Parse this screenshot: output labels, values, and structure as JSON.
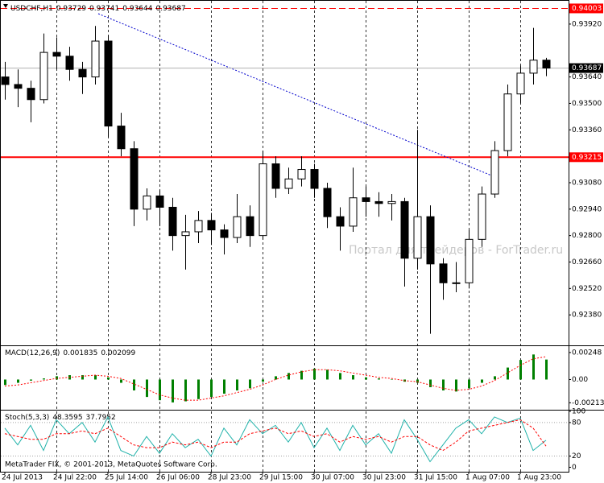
{
  "chart_data": [
    {
      "type": "candlestick",
      "symbol": "USDCHF,H1",
      "watermark": "Портал для трейдеров - ForTrader.ru",
      "copyright": "MetaTrader FIX, © 2001-2013, MetaQuotes Software Corp.",
      "categories": [
        "24 Jul 2013",
        null,
        null,
        null,
        "24 Jul 22:00",
        null,
        null,
        null,
        "25 Jul 14:00",
        null,
        null,
        null,
        "26 Jul 06:00",
        null,
        null,
        null,
        "28 Jul 23:00",
        null,
        null,
        null,
        "29 Jul 15:00",
        null,
        null,
        null,
        "30 Jul 07:00",
        null,
        null,
        null,
        "30 Jul 23:00",
        null,
        null,
        null,
        "31 Jul 15:00",
        null,
        null,
        null,
        "1 Aug 07:00",
        null,
        null,
        null,
        "1 Aug 23:00",
        null,
        null
      ],
      "open": [
        0.9364,
        0.936,
        0.9358,
        0.9352,
        0.9377,
        0.9375,
        0.9368,
        0.9364,
        0.9383,
        0.9338,
        0.9326,
        0.9294,
        0.9301,
        0.9295,
        0.928,
        0.9282,
        0.9288,
        0.9283,
        0.9279,
        0.929,
        0.928,
        0.9318,
        0.9305,
        0.931,
        0.9315,
        0.9305,
        0.929,
        0.9285,
        0.93,
        0.9298,
        0.9297,
        0.9298,
        0.9268,
        0.929,
        0.9265,
        0.9255,
        0.9255,
        0.9278,
        0.9302,
        0.9325,
        0.9355,
        0.9366,
        0.93729
      ],
      "high": [
        0.9372,
        0.9368,
        0.9362,
        0.9387,
        0.9385,
        0.938,
        0.9372,
        0.9391,
        0.9386,
        0.9345,
        0.933,
        0.9305,
        0.9304,
        0.93,
        0.9291,
        0.9293,
        0.9292,
        0.9286,
        0.9302,
        0.9296,
        0.9325,
        0.9322,
        0.9316,
        0.9322,
        0.9318,
        0.9308,
        0.9295,
        0.9316,
        0.9306,
        0.9303,
        0.9302,
        0.93,
        0.9336,
        0.9296,
        0.9268,
        0.9266,
        0.9283,
        0.9306,
        0.933,
        0.936,
        0.937,
        0.939,
        0.93741
      ],
      "low": [
        0.9352,
        0.9348,
        0.934,
        0.935,
        0.9368,
        0.9362,
        0.9355,
        0.936,
        0.9332,
        0.9322,
        0.9285,
        0.9288,
        0.9285,
        0.9272,
        0.9262,
        0.9276,
        0.9275,
        0.927,
        0.9276,
        0.9274,
        0.9278,
        0.93,
        0.9302,
        0.9306,
        0.93,
        0.9284,
        0.9272,
        0.9282,
        0.929,
        0.929,
        0.9288,
        0.9253,
        0.9262,
        0.9228,
        0.9246,
        0.925,
        0.9252,
        0.9274,
        0.93,
        0.9322,
        0.935,
        0.936,
        0.93644
      ],
      "close": [
        0.936,
        0.9358,
        0.9352,
        0.9377,
        0.9375,
        0.9368,
        0.9364,
        0.9383,
        0.9338,
        0.9326,
        0.9294,
        0.9301,
        0.9295,
        0.928,
        0.9282,
        0.9288,
        0.9283,
        0.9279,
        0.929,
        0.928,
        0.9318,
        0.9305,
        0.931,
        0.9315,
        0.9305,
        0.929,
        0.9285,
        0.93,
        0.9298,
        0.9297,
        0.9298,
        0.9268,
        0.929,
        0.9265,
        0.9255,
        0.9255,
        0.9278,
        0.9302,
        0.9325,
        0.9355,
        0.9366,
        0.93729,
        0.93687
      ],
      "color": "#000000",
      "ylim": [
        0.92223,
        0.94039
      ],
      "yticks": [
        {
          "value": 0.9392,
          "label": "0.93920"
        },
        {
          "value": 0.9364,
          "label": "0.93640"
        },
        {
          "value": 0.935,
          "label": "0.93500"
        },
        {
          "value": 0.9336,
          "label": "0.93360"
        },
        {
          "value": 0.9308,
          "label": "0.93080"
        },
        {
          "value": 0.9294,
          "label": "0.92940"
        },
        {
          "value": 0.928,
          "label": "0.92800"
        },
        {
          "value": 0.9266,
          "label": "0.92660"
        },
        {
          "value": 0.9252,
          "label": "0.92520"
        },
        {
          "value": 0.9238,
          "label": "0.92380"
        }
      ],
      "levels": [
        {
          "value": 0.94003,
          "style": "dashed",
          "color": "#ff0000"
        },
        {
          "value": 0.93215,
          "style": "solid",
          "color": "#ff0000"
        }
      ],
      "trendline": {
        "x": [
          7.25,
          38.2
        ],
        "y": [
          0.93975,
          0.93106
        ],
        "color": "#0000cd"
      }
    },
    {
      "type": "macd",
      "title": "MACD(12,26,9)",
      "series": [
        {
          "color": "#008000",
          "values": [
            -0.0005,
            -0.0003,
            -0.0001,
            0.0001,
            0.0003,
            0.0004,
            0.0004,
            0.0004,
            0.0002,
            -0.0003,
            -0.001,
            -0.0016,
            -0.0019,
            -0.0021,
            -0.002,
            -0.0018,
            -0.0016,
            -0.0013,
            -0.001,
            -0.0008,
            -0.0002,
            0.0003,
            0.0006,
            0.0008,
            0.001,
            0.0009,
            0.0006,
            0.0004,
            0.0002,
            0.0001,
            0,
            -0.0002,
            -0.0003,
            -0.0007,
            -0.001,
            -0.0011,
            -0.0008,
            -0.0003,
            0.0003,
            0.0011,
            0.0018,
            0.0023,
            0.001835
          ]
        },
        {
          "color": "#ff0000",
          "values": [
            -0.0006,
            -0.0005,
            -0.0003,
            -0.0001,
            0.0001,
            0.0002,
            0.0003,
            0.0004,
            0.0003,
            0.0001,
            -0.0004,
            -0.0009,
            -0.0014,
            -0.0017,
            -0.0019,
            -0.0019,
            -0.0017,
            -0.0015,
            -0.0012,
            -0.0009,
            -0.0005,
            0,
            0.0004,
            0.0007,
            0.0009,
            0.0009,
            0.0008,
            0.0006,
            0.0004,
            0.0002,
            0.0001,
            -0.0001,
            -0.0002,
            -0.0005,
            -0.0008,
            -0.001,
            -0.0009,
            -0.0006,
            -0.0001,
            0.0006,
            0.0013,
            0.0019,
            0.002099
          ]
        }
      ],
      "ylim": [
        -0.0027,
        0.00299
      ],
      "yticks": [
        0.00248,
        {
          "value": 0,
          "label": "0.00"
        },
        -0.002135
      ]
    },
    {
      "type": "stochastic",
      "title": "Stoch(5,3,3)",
      "series": [
        {
          "color": "#20b2aa",
          "values": [
            70,
            40,
            75,
            30,
            85,
            60,
            80,
            45,
            90,
            30,
            20,
            55,
            25,
            60,
            35,
            50,
            20,
            70,
            40,
            85,
            60,
            75,
            45,
            80,
            35,
            70,
            30,
            75,
            40,
            60,
            25,
            85,
            50,
            10,
            40,
            70,
            85,
            60,
            90,
            80,
            88,
            30,
            48.3595
          ]
        },
        {
          "color": "#ff0000",
          "values": [
            60,
            55,
            50,
            50,
            60,
            60,
            65,
            60,
            70,
            55,
            40,
            35,
            35,
            45,
            40,
            45,
            35,
            45,
            45,
            60,
            65,
            70,
            60,
            65,
            55,
            60,
            45,
            55,
            50,
            55,
            45,
            55,
            55,
            40,
            30,
            45,
            65,
            70,
            75,
            80,
            85,
            70,
            37.7952
          ]
        }
      ],
      "ylim": [
        -8,
        100
      ],
      "yticks": [
        100,
        80,
        20,
        0
      ],
      "levels": [
        80,
        20
      ]
    }
  ]
}
